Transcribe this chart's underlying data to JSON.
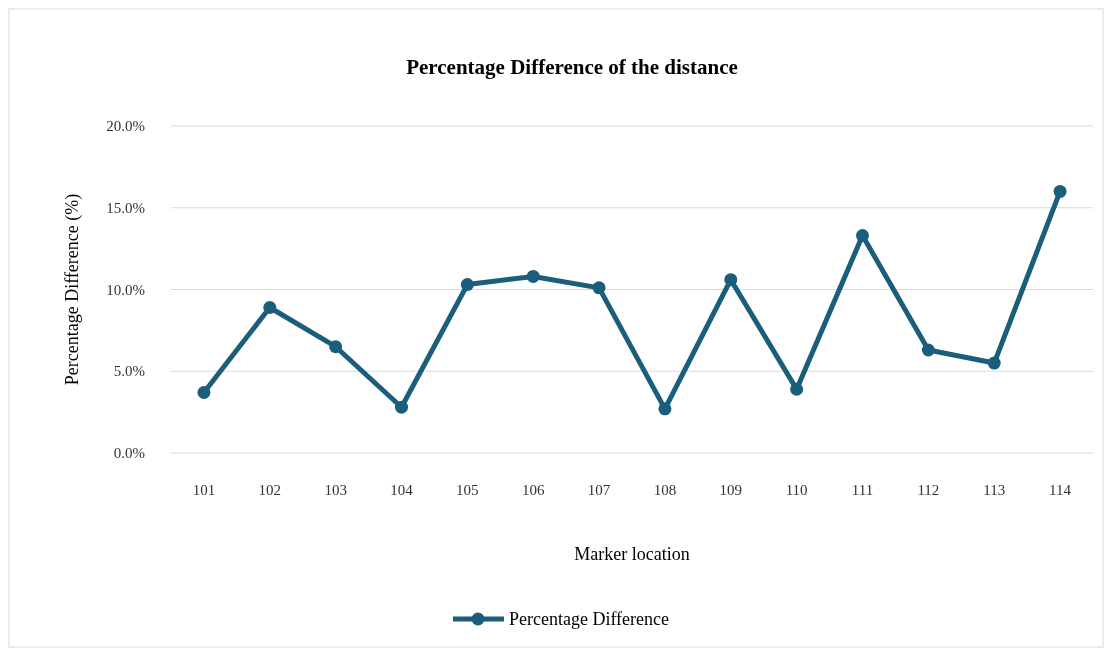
{
  "chart_data": {
    "type": "line",
    "title": "Percentage Difference of the distance",
    "xlabel": "Marker location",
    "ylabel": "Percentage Difference (%)",
    "categories": [
      "101",
      "102",
      "103",
      "104",
      "105",
      "106",
      "107",
      "108",
      "109",
      "110",
      "111",
      "112",
      "113",
      "114"
    ],
    "series": [
      {
        "name": "Percentage Difference",
        "color": "#1b5e7b",
        "values": [
          3.7,
          8.9,
          6.5,
          2.8,
          10.3,
          10.8,
          10.1,
          2.7,
          10.6,
          3.9,
          13.3,
          6.3,
          5.5,
          16.0
        ]
      }
    ],
    "ylim": [
      0,
      20
    ],
    "yticks": [
      {
        "value": 0,
        "label": "0.0%"
      },
      {
        "value": 5,
        "label": "5.0%"
      },
      {
        "value": 10,
        "label": "10.0%"
      },
      {
        "value": 15,
        "label": "15.0%"
      },
      {
        "value": 20,
        "label": "20.0%"
      }
    ],
    "grid": "y",
    "legend": "bottom",
    "marker": "circle",
    "line_style": "solid"
  }
}
